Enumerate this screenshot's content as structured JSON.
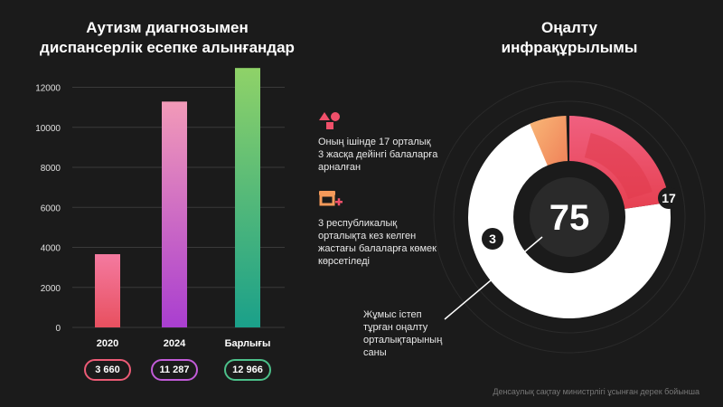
{
  "left_title_line1": "Аутизм диагнозымен",
  "left_title_line2": "диспансерлік есепке алынғандар",
  "right_title_line1": "Оңалту",
  "right_title_line2": "инфрақұрылымы",
  "source": "Денсаулық сақтау министрлігі ұсынған дерек бойынша",
  "notes": [
    {
      "icon": "shapes-icon",
      "text_lines": [
        "Оның ішінде 17 орталық",
        "3 жасқа дейінгі балаларға",
        "арналған"
      ]
    },
    {
      "icon": "store-plus-icon",
      "text_lines": [
        "3 республикалық",
        "орталықта кез келген",
        "жастағы балаларға көмек",
        "көрсетіледі"
      ]
    }
  ],
  "donut_callout_lines": [
    "Жұмыс істеп",
    "тұрған оңалту",
    "орталықтарының",
    "саны"
  ],
  "colors": {
    "pink": "#e0445d",
    "purple": "#b040d0",
    "green": "#2aaa8a",
    "orange": "#f2a25a"
  },
  "chart_data": [
    {
      "type": "bar",
      "categories": [
        "2020",
        "2024",
        "Барлығы"
      ],
      "values": [
        3660,
        11287,
        12966
      ],
      "value_labels": [
        "3 660",
        "11 287",
        "12 966"
      ],
      "ylim": [
        0,
        13200
      ],
      "yticks": [
        0,
        2000,
        4000,
        6000,
        8000,
        10000,
        12000
      ],
      "grid": true
    },
    {
      "type": "pie",
      "total": 75,
      "slices": [
        {
          "label": "17",
          "value": 17
        },
        {
          "label": "3",
          "value": 3
        },
        {
          "label": "",
          "value": 55
        }
      ]
    }
  ]
}
